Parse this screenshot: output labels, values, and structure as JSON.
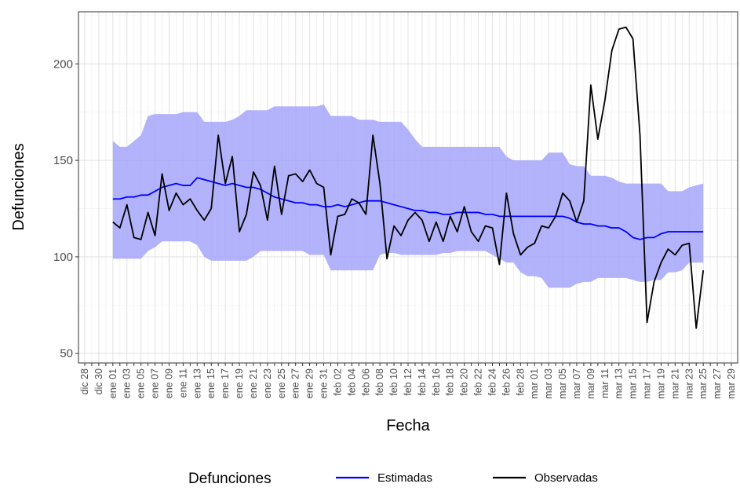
{
  "chart_data": {
    "type": "line",
    "x_label": "Fecha",
    "y_label": "Defunciones",
    "legend_title": "Defunciones",
    "legend_position": "bottom",
    "categories": [
      "dic 28",
      null,
      "dic 30",
      null,
      "ene 01",
      null,
      "ene 03",
      null,
      "ene 05",
      null,
      "ene 07",
      null,
      "ene 09",
      null,
      "ene 11",
      null,
      "ene 13",
      null,
      "ene 15",
      null,
      "ene 17",
      null,
      "ene 19",
      null,
      "ene 21",
      null,
      "ene 23",
      null,
      "ene 25",
      null,
      "ene 27",
      null,
      "ene 29",
      null,
      "ene 31",
      null,
      "feb 02",
      null,
      "feb 04",
      null,
      "feb 06",
      null,
      "feb 08",
      null,
      "feb 10",
      null,
      "feb 12",
      null,
      "feb 14",
      null,
      "feb 16",
      null,
      "feb 18",
      null,
      "feb 20",
      null,
      "feb 22",
      null,
      "feb 24",
      null,
      "feb 26",
      null,
      "feb 28",
      null,
      "mar 01",
      null,
      "mar 03",
      null,
      "mar 05",
      null,
      "mar 07",
      null,
      "mar 09",
      null,
      "mar 11",
      null,
      "mar 13",
      null,
      "mar 15",
      null,
      "mar 17",
      null,
      "mar 19",
      null,
      "mar 21",
      null,
      "mar 23",
      null,
      "mar 25",
      null,
      "mar 27",
      null,
      "mar 29"
    ],
    "ylim": [
      45,
      227
    ],
    "yticks": [
      50,
      100,
      150,
      200
    ],
    "minor_yticks": [
      75,
      125,
      175,
      225
    ],
    "grid": true,
    "series": [
      {
        "name": "Estimadas",
        "color": "#0000ff",
        "band_color": "#a6a6fb",
        "values": [
          null,
          null,
          null,
          null,
          130,
          130,
          131,
          131,
          132,
          132,
          134,
          136,
          137,
          138,
          137,
          137,
          141,
          140,
          139,
          138,
          137,
          138,
          137,
          136,
          136,
          135,
          133,
          131,
          130,
          129,
          128,
          128,
          127,
          127,
          126,
          126,
          127,
          126,
          127,
          128,
          129,
          129,
          129,
          128,
          127,
          126,
          125,
          124,
          124,
          123,
          123,
          122,
          122,
          123,
          123,
          123,
          123,
          122,
          122,
          121,
          121,
          121,
          121,
          121,
          121,
          121,
          121,
          121,
          121,
          120,
          118,
          117,
          117,
          116,
          116,
          115,
          115,
          113,
          110,
          109,
          110,
          110,
          112,
          113,
          113,
          113,
          113,
          113,
          113,
          null,
          null,
          null,
          null
        ],
        "upper": [
          null,
          null,
          null,
          null,
          160,
          157,
          157,
          160,
          163,
          173,
          174,
          174,
          174,
          174,
          175,
          175,
          175,
          170,
          170,
          170,
          170,
          171,
          173,
          176,
          176,
          176,
          176,
          178,
          178,
          178,
          178,
          178,
          178,
          178,
          179,
          173,
          173,
          173,
          173,
          171,
          171,
          171,
          170,
          170,
          170,
          170,
          166,
          161,
          157,
          157,
          157,
          157,
          157,
          157,
          157,
          157,
          157,
          157,
          157,
          157,
          152,
          150,
          150,
          150,
          150,
          150,
          154,
          154,
          154,
          148,
          147,
          147,
          142,
          142,
          142,
          141,
          139,
          138,
          138,
          138,
          138,
          138,
          138,
          134,
          134,
          134,
          136,
          137,
          138,
          null,
          null,
          null,
          null
        ],
        "lower": [
          null,
          null,
          null,
          null,
          99,
          99,
          99,
          99,
          99,
          103,
          105,
          108,
          108,
          108,
          108,
          108,
          106,
          100,
          98,
          98,
          98,
          98,
          98,
          98,
          100,
          103,
          103,
          103,
          103,
          103,
          103,
          103,
          101,
          101,
          101,
          93,
          93,
          93,
          93,
          93,
          93,
          93,
          101,
          102,
          102,
          101,
          101,
          101,
          101,
          101,
          101,
          102,
          102,
          103,
          103,
          103,
          103,
          103,
          101,
          99,
          97,
          97,
          92,
          90,
          90,
          89,
          84,
          84,
          84,
          84,
          86,
          87,
          87,
          89,
          89,
          89,
          89,
          89,
          88,
          87,
          87,
          88,
          88,
          92,
          92,
          93,
          97,
          97,
          97,
          null,
          null,
          null,
          null
        ]
      },
      {
        "name": "Observadas",
        "color": "#000000",
        "values": [
          null,
          null,
          null,
          null,
          118,
          115,
          127,
          110,
          109,
          123,
          111,
          143,
          124,
          133,
          127,
          130,
          124,
          119,
          125,
          163,
          138,
          152,
          113,
          122,
          144,
          137,
          119,
          147,
          122,
          142,
          143,
          139,
          145,
          138,
          136,
          101,
          121,
          122,
          130,
          128,
          122,
          163,
          138,
          99,
          116,
          111,
          119,
          123,
          119,
          108,
          118,
          108,
          121,
          113,
          126,
          113,
          108,
          116,
          115,
          96,
          133,
          112,
          101,
          105,
          107,
          116,
          115,
          121,
          133,
          129,
          118,
          129,
          189,
          161,
          181,
          207,
          218,
          219,
          213,
          163,
          66,
          87,
          97,
          104,
          101,
          106,
          107,
          63,
          93,
          null,
          null,
          null,
          null
        ]
      }
    ]
  }
}
